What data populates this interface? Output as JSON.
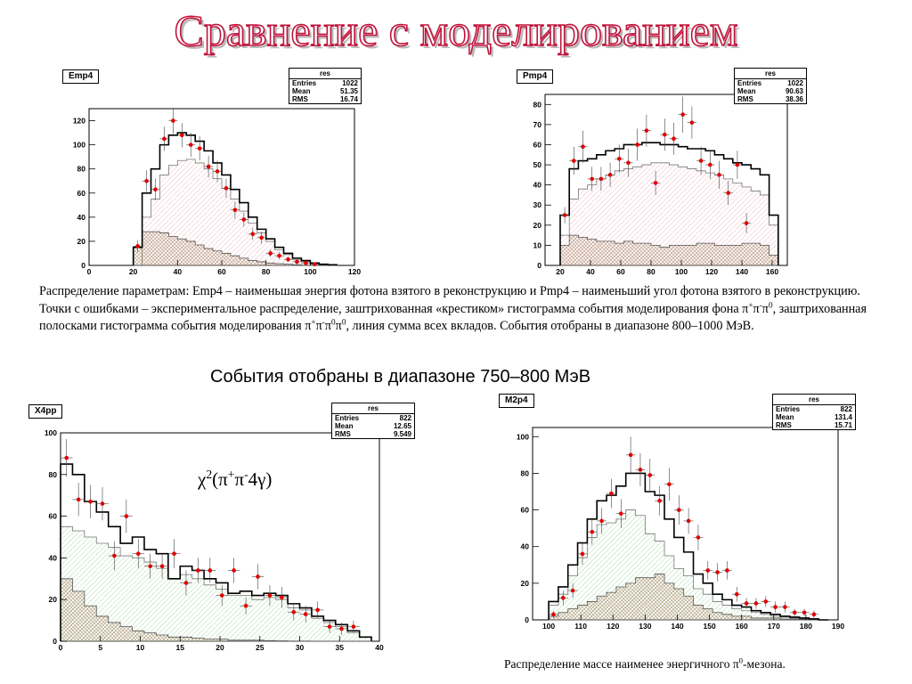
{
  "slide": {
    "title": "Сравнение с моделированием"
  },
  "captions": {
    "cap1_pre": "Распределение параметрам: Emp4 – наименьшая энергия фотона взятого в реконструкцию и Pmp4 – наименьший угол фотона взятого в реконструкцию. Точки с ошибками – экспериментальное распределение, заштрихованная «крестиком» гистограмма события моделирования фона π",
    "cap1_s1": "+",
    "cap1_m1": "π",
    "cap1_s2": "-",
    "cap1_m2": "π",
    "cap1_s3": "0",
    "cap1_m3": ", заштрихованная полосками гистограмма события моделирования π",
    "cap1_s4": "+",
    "cap1_m4": "π",
    "cap1_s5": "-",
    "cap1_m5": "π",
    "cap1_s6": "0",
    "cap1_m6": "π",
    "cap1_s7": "0",
    "cap1_post": ", линия сумма всех вкладов. События отобраны в диапазоне 800–1000 МэВ.",
    "cap2": "События отобраны в диапазоне 750–800 МэВ",
    "cap3_pre": "Распределение массе наименее энергичного π",
    "cap3_sup": "0",
    "cap3_post": "-мезона."
  },
  "formula": {
    "chi": "χ",
    "sup2": "2",
    "open": "(π",
    "plus": "+",
    "pi2": "π",
    "minus": "-",
    "tail": "4γ)"
  },
  "colors": {
    "title_stroke": "#c0143c",
    "point": "#e00000",
    "sum_line": "#000000",
    "emp4_signal_hatch": "#e06080",
    "pmp4_signal_hatch": "#e06080",
    "x4pp_signal_hatch": "#40b040",
    "m2p4_signal_hatch": "#40b040",
    "background_hatch": "#8a5a2a"
  },
  "chart_data": [
    {
      "id": "emp4",
      "type": "histogram",
      "name": "Emp4",
      "stats": {
        "title": "res",
        "rows": [
          [
            "Entries",
            "1022"
          ],
          [
            "Mean",
            "51.35"
          ],
          [
            "RMS",
            "16.74"
          ]
        ]
      },
      "xlim": [
        0,
        120
      ],
      "ylim": [
        0,
        130
      ],
      "xticks": [
        0,
        20,
        40,
        60,
        80,
        100,
        120
      ],
      "yticks": [
        0,
        20,
        40,
        60,
        80,
        100,
        120
      ],
      "bins": [
        20,
        24,
        28,
        32,
        36,
        40,
        44,
        48,
        52,
        56,
        60,
        64,
        68,
        72,
        76,
        80,
        84,
        88,
        92,
        96,
        100,
        104,
        108
      ],
      "bin_width": 4,
      "sum": [
        15,
        60,
        80,
        100,
        108,
        110,
        108,
        103,
        95,
        85,
        75,
        63,
        52,
        40,
        30,
        22,
        15,
        10,
        6,
        4,
        2,
        1,
        0.5
      ],
      "signal": [
        0,
        40,
        55,
        75,
        83,
        87,
        88,
        85,
        80,
        72,
        64,
        55,
        45,
        35,
        27,
        20,
        13,
        9,
        5,
        3,
        1.5,
        0.7,
        0.3
      ],
      "background": [
        15,
        28,
        28,
        27,
        24,
        22,
        20,
        17,
        14,
        12,
        10,
        8,
        6,
        4,
        3,
        2,
        1.5,
        1,
        0.5,
        0.3,
        0.2,
        0.1,
        0
      ],
      "points": [
        [
          22,
          16,
          5
        ],
        [
          26,
          70,
          9
        ],
        [
          30,
          63,
          9
        ],
        [
          34,
          105,
          10
        ],
        [
          38,
          120,
          11
        ],
        [
          42,
          108,
          10
        ],
        [
          46,
          100,
          10
        ],
        [
          50,
          97,
          10
        ],
        [
          54,
          82,
          9
        ],
        [
          58,
          78,
          9
        ],
        [
          62,
          64,
          8
        ],
        [
          66,
          46,
          7
        ],
        [
          70,
          38,
          6
        ],
        [
          74,
          26,
          5
        ],
        [
          78,
          23,
          5
        ],
        [
          82,
          10,
          3
        ],
        [
          86,
          8,
          3
        ],
        [
          90,
          5,
          2
        ],
        [
          94,
          3,
          2
        ],
        [
          98,
          2,
          1.5
        ],
        [
          102,
          1,
          1
        ]
      ]
    },
    {
      "id": "pmp4",
      "type": "histogram",
      "name": "Pmp4",
      "stats": {
        "title": "res",
        "rows": [
          [
            "Entries",
            "1022"
          ],
          [
            "Mean",
            "90.63"
          ],
          [
            "RMS",
            "38.36"
          ]
        ]
      },
      "xlim": [
        10,
        170
      ],
      "ylim": [
        0,
        85
      ],
      "xticks": [
        20,
        40,
        60,
        80,
        100,
        120,
        140,
        160
      ],
      "yticks": [
        0,
        10,
        20,
        30,
        40,
        50,
        60,
        70,
        80
      ],
      "bins": [
        20,
        26,
        32,
        38,
        44,
        50,
        56,
        62,
        68,
        74,
        80,
        86,
        92,
        98,
        104,
        110,
        116,
        122,
        128,
        134,
        140,
        146,
        152,
        158
      ],
      "bin_width": 6,
      "sum": [
        25,
        48,
        52,
        53,
        55,
        57,
        58,
        60,
        60,
        61,
        61,
        60,
        60,
        59,
        58,
        58,
        57,
        55,
        53,
        51,
        50,
        48,
        45,
        25
      ],
      "signal": [
        15,
        33,
        38,
        40,
        43,
        45,
        47,
        48,
        49,
        50,
        51,
        51,
        50,
        49,
        48,
        47,
        46,
        45,
        43,
        41,
        39,
        37,
        35,
        20
      ],
      "background": [
        10,
        15,
        14,
        13,
        12,
        12,
        11,
        12,
        11,
        11,
        10,
        9,
        10,
        10,
        10,
        11,
        11,
        10,
        10,
        10,
        11,
        11,
        10,
        5
      ],
      "points": [
        [
          23,
          25,
          4
        ],
        [
          29,
          52,
          7
        ],
        [
          35,
          59,
          8
        ],
        [
          41,
          43,
          6
        ],
        [
          47,
          43,
          6
        ],
        [
          53,
          45,
          6
        ],
        [
          59,
          53,
          7
        ],
        [
          65,
          51,
          7
        ],
        [
          71,
          60,
          8
        ],
        [
          77,
          67,
          8
        ],
        [
          83,
          41,
          6
        ],
        [
          89,
          65,
          8
        ],
        [
          95,
          63,
          8
        ],
        [
          101,
          75,
          9
        ],
        [
          107,
          71,
          8
        ],
        [
          113,
          52,
          7
        ],
        [
          119,
          50,
          7
        ],
        [
          125,
          45,
          7
        ],
        [
          131,
          36,
          6
        ],
        [
          137,
          50,
          7
        ],
        [
          143,
          21,
          5
        ]
      ]
    },
    {
      "id": "x4pp",
      "type": "histogram",
      "name": "X4pp",
      "stats": {
        "title": "res",
        "rows": [
          [
            "Entries",
            "822"
          ],
          [
            "Mean",
            "12.65"
          ],
          [
            "RMS",
            "9.549"
          ]
        ]
      },
      "xlim": [
        0,
        40
      ],
      "ylim": [
        0,
        100
      ],
      "xticks": [
        0,
        5,
        10,
        15,
        20,
        25,
        30,
        35,
        40
      ],
      "yticks": [
        0,
        20,
        40,
        60,
        80,
        100
      ],
      "bins": [
        0,
        1.5,
        3,
        4.5,
        6,
        7.5,
        9,
        10.5,
        12,
        13.5,
        15,
        16.5,
        18,
        19.5,
        21,
        22.5,
        24,
        25.5,
        27,
        28.5,
        30,
        31.5,
        33,
        34.5,
        36,
        37.5
      ],
      "bin_width": 1.5,
      "sum": [
        85,
        80,
        67,
        62,
        55,
        47,
        50,
        44,
        42,
        30,
        36,
        34,
        30,
        28,
        23,
        24,
        22,
        23,
        22,
        18,
        16,
        12,
        10,
        8,
        5,
        2
      ],
      "signal": [
        55,
        53,
        50,
        47,
        45,
        41,
        40,
        38,
        35,
        30,
        32,
        30,
        27,
        25,
        22,
        22,
        20,
        21,
        20,
        16,
        15,
        11,
        9,
        7,
        4,
        2
      ],
      "background": [
        30,
        24,
        17,
        12,
        9,
        7,
        5,
        4,
        3,
        2,
        2,
        1.5,
        1,
        1,
        0.5,
        0.5,
        0.5,
        0.3,
        0.2,
        0.1,
        0.1,
        0,
        0,
        0,
        0,
        0
      ],
      "points": [
        [
          0.75,
          88,
          9
        ],
        [
          2.25,
          68,
          8
        ],
        [
          3.75,
          67,
          8
        ],
        [
          5.25,
          66,
          8
        ],
        [
          6.75,
          41,
          7
        ],
        [
          8.25,
          60,
          8
        ],
        [
          9.75,
          42,
          7
        ],
        [
          11.25,
          36,
          6
        ],
        [
          12.75,
          36,
          6
        ],
        [
          14.25,
          42,
          7
        ],
        [
          15.75,
          28,
          6
        ],
        [
          17.25,
          34,
          6
        ],
        [
          18.75,
          34,
          6
        ],
        [
          20.25,
          22,
          5
        ],
        [
          21.75,
          34,
          6
        ],
        [
          23.25,
          17,
          4
        ],
        [
          24.75,
          31,
          6
        ],
        [
          26.25,
          22,
          5
        ],
        [
          27.75,
          21,
          5
        ],
        [
          29.25,
          14,
          4
        ],
        [
          30.75,
          13,
          4
        ],
        [
          32.25,
          15,
          4
        ],
        [
          33.75,
          7,
          3
        ],
        [
          35.25,
          6,
          3
        ],
        [
          36.75,
          7,
          3
        ]
      ]
    },
    {
      "id": "m2p4",
      "type": "histogram",
      "name": "M2p4",
      "stats": {
        "title": "res",
        "rows": [
          [
            "Entries",
            "822"
          ],
          [
            "Mean",
            "131.4"
          ],
          [
            "RMS",
            "15.71"
          ]
        ]
      },
      "xlim": [
        95,
        190
      ],
      "ylim": [
        0,
        105
      ],
      "xticks": [
        100,
        110,
        120,
        130,
        140,
        150,
        160,
        170,
        180,
        190
      ],
      "yticks": [
        0,
        20,
        40,
        60,
        80,
        100
      ],
      "bins": [
        100,
        103,
        106,
        109,
        112,
        115,
        118,
        121,
        124,
        127,
        130,
        133,
        136,
        139,
        142,
        145,
        148,
        151,
        154,
        157,
        160,
        163,
        166,
        169,
        172,
        175,
        178,
        181,
        184
      ],
      "bin_width": 3,
      "sum": [
        10,
        18,
        30,
        42,
        55,
        65,
        68,
        73,
        80,
        80,
        70,
        68,
        55,
        45,
        37,
        25,
        20,
        14,
        11,
        8,
        7,
        5,
        4,
        3,
        2,
        1.5,
        1,
        0.5,
        0
      ],
      "signal": [
        8,
        14,
        24,
        34,
        45,
        52,
        53,
        55,
        60,
        57,
        47,
        43,
        35,
        28,
        24,
        17,
        14,
        10,
        8,
        6,
        5,
        4,
        3,
        2,
        1.5,
        1,
        0.7,
        0.3,
        0
      ],
      "background": [
        2,
        4,
        6,
        8,
        10,
        13,
        15,
        18,
        20,
        23,
        23,
        25,
        20,
        17,
        13,
        8,
        6,
        4,
        3,
        2,
        2,
        1,
        1,
        1,
        0.5,
        0.5,
        0.3,
        0.2,
        0
      ],
      "points": [
        [
          101.5,
          3,
          2
        ],
        [
          104.5,
          12,
          4
        ],
        [
          107.5,
          16,
          4
        ],
        [
          110.5,
          36,
          6
        ],
        [
          113.5,
          48,
          7
        ],
        [
          116.5,
          54,
          7
        ],
        [
          119.5,
          69,
          8
        ],
        [
          122.5,
          58,
          8
        ],
        [
          125.5,
          90,
          10
        ],
        [
          128.5,
          82,
          9
        ],
        [
          131.5,
          79,
          9
        ],
        [
          134.5,
          65,
          8
        ],
        [
          137.5,
          74,
          9
        ],
        [
          140.5,
          60,
          8
        ],
        [
          143.5,
          54,
          7
        ],
        [
          146.5,
          45,
          7
        ],
        [
          149.5,
          27,
          5
        ],
        [
          152.5,
          26,
          5
        ],
        [
          155.5,
          27,
          5
        ],
        [
          158.5,
          14,
          4
        ],
        [
          161.5,
          9,
          3
        ],
        [
          164.5,
          9,
          3
        ],
        [
          167.5,
          10,
          3
        ],
        [
          170.5,
          7,
          3
        ],
        [
          173.5,
          7,
          3
        ],
        [
          176.5,
          4,
          2
        ],
        [
          179.5,
          4,
          2
        ],
        [
          182.5,
          3,
          2
        ]
      ]
    }
  ]
}
